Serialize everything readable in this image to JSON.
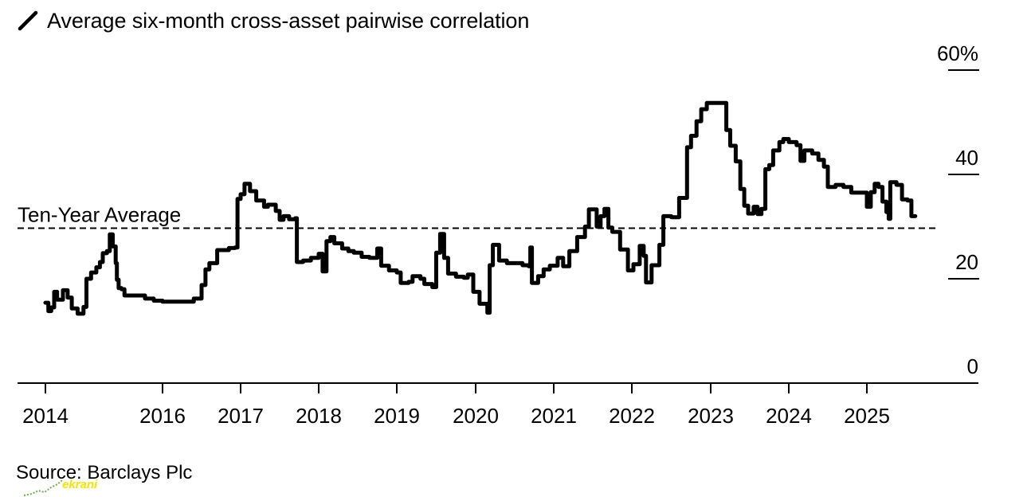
{
  "chart_data": {
    "type": "line",
    "title": "",
    "xlabel": "",
    "ylabel": "",
    "ylim": [
      0,
      60
    ],
    "y_ticks": [
      {
        "value": 60,
        "label": "60%"
      },
      {
        "value": 40,
        "label": "40"
      },
      {
        "value": 20,
        "label": "20"
      },
      {
        "value": 0,
        "label": "0"
      }
    ],
    "x_ticks": [
      {
        "value": 2014,
        "label": "2014"
      },
      {
        "value": 2016,
        "label": "2016"
      },
      {
        "value": 2017,
        "label": "2017"
      },
      {
        "value": 2018,
        "label": "2018"
      },
      {
        "value": 2019,
        "label": "2019"
      },
      {
        "value": 2020,
        "label": "2020"
      },
      {
        "value": 2021,
        "label": "2021"
      },
      {
        "value": 2022,
        "label": "2022"
      },
      {
        "value": 2023,
        "label": "2023"
      },
      {
        "value": 2024,
        "label": "2024"
      },
      {
        "value": 2025,
        "label": "2025"
      }
    ],
    "grid": false,
    "legend": "top-left",
    "series": [
      {
        "name": "Average six-month cross-asset pairwise correlation",
        "color": "#000000",
        "points": [
          [
            2014.0,
            15.4
          ],
          [
            2014.05,
            13.8
          ],
          [
            2014.1,
            14.5
          ],
          [
            2014.15,
            17.5
          ],
          [
            2014.2,
            16.0
          ],
          [
            2014.3,
            17.8
          ],
          [
            2014.38,
            16.4
          ],
          [
            2014.45,
            14.3
          ],
          [
            2014.55,
            13.3
          ],
          [
            2014.65,
            14.6
          ],
          [
            2014.7,
            20.0
          ],
          [
            2014.78,
            21.2
          ],
          [
            2014.87,
            22.2
          ],
          [
            2014.93,
            23.2
          ],
          [
            2014.98,
            24.9
          ],
          [
            2015.05,
            25.3
          ],
          [
            2015.1,
            28.5
          ],
          [
            2015.15,
            26.2
          ],
          [
            2015.2,
            23.0
          ],
          [
            2015.22,
            19.8
          ],
          [
            2015.25,
            18.2
          ],
          [
            2015.3,
            18.0
          ],
          [
            2015.35,
            16.8
          ],
          [
            2015.5,
            16.8
          ],
          [
            2015.7,
            16.2
          ],
          [
            2015.85,
            15.8
          ],
          [
            2016.0,
            15.6
          ],
          [
            2016.2,
            15.6
          ],
          [
            2016.3,
            15.6
          ],
          [
            2016.4,
            16.2
          ],
          [
            2016.5,
            18.8
          ],
          [
            2016.55,
            21.8
          ],
          [
            2016.6,
            23.0
          ],
          [
            2016.7,
            25.5
          ],
          [
            2016.85,
            25.9
          ],
          [
            2016.93,
            26.0
          ],
          [
            2016.96,
            35.3
          ],
          [
            2017.0,
            36.2
          ],
          [
            2017.05,
            38.2
          ],
          [
            2017.12,
            36.8
          ],
          [
            2017.2,
            35.0
          ],
          [
            2017.3,
            33.8
          ],
          [
            2017.35,
            34.2
          ],
          [
            2017.45,
            33.0
          ],
          [
            2017.5,
            31.3
          ],
          [
            2017.55,
            32.0
          ],
          [
            2017.62,
            31.4
          ],
          [
            2017.7,
            31.6
          ],
          [
            2017.72,
            23.2
          ],
          [
            2017.8,
            23.5
          ],
          [
            2017.9,
            24.0
          ],
          [
            2018.0,
            24.8
          ],
          [
            2018.05,
            21.4
          ],
          [
            2018.1,
            27.2
          ],
          [
            2018.15,
            28.0
          ],
          [
            2018.2,
            26.8
          ],
          [
            2018.3,
            25.8
          ],
          [
            2018.38,
            25.3
          ],
          [
            2018.45,
            25.0
          ],
          [
            2018.55,
            24.2
          ],
          [
            2018.65,
            24.0
          ],
          [
            2018.75,
            25.8
          ],
          [
            2018.8,
            22.5
          ],
          [
            2018.9,
            21.6
          ],
          [
            2019.0,
            21.2
          ],
          [
            2019.05,
            19.2
          ],
          [
            2019.15,
            19.4
          ],
          [
            2019.2,
            20.5
          ],
          [
            2019.3,
            20.0
          ],
          [
            2019.35,
            19.0
          ],
          [
            2019.45,
            18.4
          ],
          [
            2019.5,
            25.0
          ],
          [
            2019.55,
            28.6
          ],
          [
            2019.6,
            24.0
          ],
          [
            2019.65,
            21.0
          ],
          [
            2019.75,
            20.4
          ],
          [
            2019.85,
            20.2
          ],
          [
            2019.9,
            20.8
          ],
          [
            2019.97,
            17.5
          ],
          [
            2020.05,
            15.2
          ],
          [
            2020.15,
            13.5
          ],
          [
            2020.18,
            22.6
          ],
          [
            2020.22,
            26.5
          ],
          [
            2020.3,
            23.5
          ],
          [
            2020.4,
            23.0
          ],
          [
            2020.5,
            23.0
          ],
          [
            2020.6,
            22.6
          ],
          [
            2020.68,
            22.4
          ],
          [
            2020.7,
            26.0
          ],
          [
            2020.72,
            19.2
          ],
          [
            2020.8,
            20.5
          ],
          [
            2020.87,
            21.8
          ],
          [
            2020.95,
            22.5
          ],
          [
            2021.05,
            24.0
          ],
          [
            2021.12,
            22.4
          ],
          [
            2021.2,
            25.3
          ],
          [
            2021.3,
            28.0
          ],
          [
            2021.4,
            30.0
          ],
          [
            2021.45,
            33.3
          ],
          [
            2021.55,
            30.0
          ],
          [
            2021.6,
            32.0
          ],
          [
            2021.65,
            33.4
          ],
          [
            2021.7,
            29.8
          ],
          [
            2021.75,
            29.0
          ],
          [
            2021.85,
            25.6
          ],
          [
            2021.95,
            21.6
          ],
          [
            2022.02,
            22.8
          ],
          [
            2022.1,
            26.3
          ],
          [
            2022.15,
            24.4
          ],
          [
            2022.18,
            19.3
          ],
          [
            2022.25,
            22.6
          ],
          [
            2022.35,
            26.5
          ],
          [
            2022.4,
            32.0
          ],
          [
            2022.5,
            31.8
          ],
          [
            2022.6,
            35.5
          ],
          [
            2022.7,
            45.2
          ],
          [
            2022.75,
            47.4
          ],
          [
            2022.82,
            50.2
          ],
          [
            2022.88,
            52.5
          ],
          [
            2022.95,
            53.7
          ],
          [
            2023.05,
            53.7
          ],
          [
            2023.15,
            53.7
          ],
          [
            2023.2,
            48.5
          ],
          [
            2023.25,
            45.5
          ],
          [
            2023.32,
            42.5
          ],
          [
            2023.38,
            37.2
          ],
          [
            2023.43,
            34.0
          ],
          [
            2023.48,
            32.5
          ],
          [
            2023.52,
            32.5
          ],
          [
            2023.55,
            33.8
          ],
          [
            2023.6,
            32.4
          ],
          [
            2023.65,
            33.4
          ],
          [
            2023.7,
            41.0
          ],
          [
            2023.75,
            41.8
          ],
          [
            2023.8,
            44.6
          ],
          [
            2023.88,
            46.2
          ],
          [
            2023.93,
            46.8
          ],
          [
            2024.0,
            46.2
          ],
          [
            2024.1,
            45.6
          ],
          [
            2024.15,
            42.6
          ],
          [
            2024.2,
            44.6
          ],
          [
            2024.3,
            44.0
          ],
          [
            2024.38,
            42.8
          ],
          [
            2024.45,
            41.5
          ],
          [
            2024.5,
            37.6
          ],
          [
            2024.6,
            38.0
          ],
          [
            2024.7,
            37.6
          ],
          [
            2024.8,
            36.5
          ],
          [
            2024.9,
            36.5
          ],
          [
            2025.0,
            33.8
          ],
          [
            2025.05,
            36.6
          ],
          [
            2025.1,
            38.2
          ],
          [
            2025.15,
            37.6
          ],
          [
            2025.2,
            34.8
          ],
          [
            2025.25,
            32.8
          ],
          [
            2025.28,
            31.5
          ],
          [
            2025.3,
            38.5
          ],
          [
            2025.38,
            38.0
          ],
          [
            2025.45,
            35.2
          ],
          [
            2025.52,
            35.0
          ],
          [
            2025.57,
            32.0
          ],
          [
            2025.62,
            32.0
          ]
        ]
      }
    ],
    "reference_lines": [
      {
        "label": "Ten-Year Average",
        "value": 29.7,
        "style": "dashed"
      }
    ]
  },
  "footer": {
    "source": "Source: Barclays Plc",
    "watermark_text": "ekrani"
  }
}
